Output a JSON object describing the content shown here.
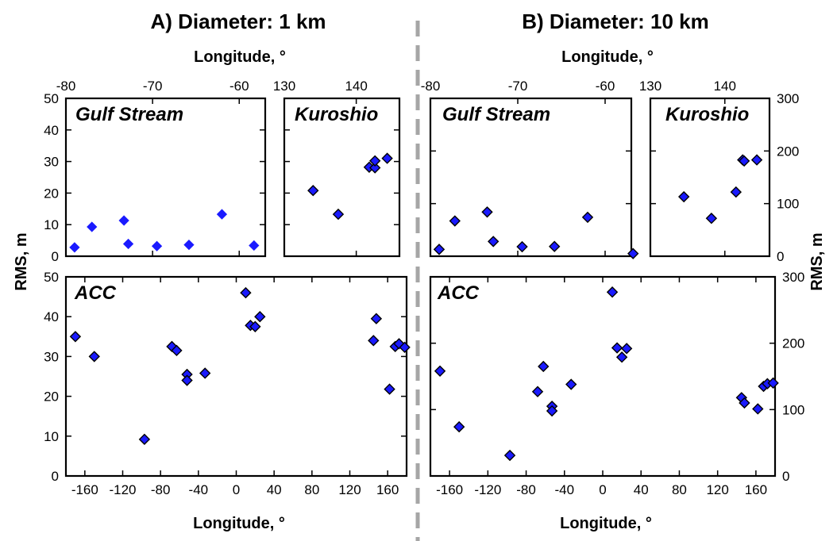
{
  "colors": {
    "marker_fill": "#1a1aff",
    "marker_stroke": "#000000",
    "frame": "#000000",
    "divider": "#a6a6a6"
  },
  "chart_data": [
    {
      "type": "scatter",
      "id": "A-gulf",
      "panel_title": "A) Diameter: 1 km",
      "region": "Gulf Stream",
      "xlabel": "Longitude, °",
      "ylabel": "RMS, m",
      "xlim": [
        -80,
        -57
      ],
      "ylim": [
        0,
        50
      ],
      "xticks": [
        -80,
        -70,
        -60
      ],
      "yticks": [
        0,
        10,
        20,
        30,
        40,
        50
      ],
      "markers_outlined": false,
      "points": [
        [
          -79,
          2.8
        ],
        [
          -77,
          9.3
        ],
        [
          -73.3,
          11.3
        ],
        [
          -72.8,
          3.9
        ],
        [
          -69.5,
          3.2
        ],
        [
          -65.8,
          3.6
        ],
        [
          -62,
          13.3
        ],
        [
          -58.3,
          3.4
        ]
      ]
    },
    {
      "type": "scatter",
      "id": "A-kuro",
      "region": "Kuroshio",
      "xlim": [
        130,
        146
      ],
      "ylim": [
        0,
        50
      ],
      "xticks": [
        130,
        140
      ],
      "markers_outlined": true,
      "points": [
        [
          134,
          20.8
        ],
        [
          137.5,
          13.3
        ],
        [
          141.8,
          28.2
        ],
        [
          142.6,
          28
        ],
        [
          142.6,
          30.2
        ],
        [
          144.3,
          31
        ]
      ]
    },
    {
      "type": "scatter",
      "id": "A-acc",
      "region": "ACC",
      "xlabel": "Longitude, °",
      "ylabel": "RMS, m",
      "xlim": [
        -180,
        180
      ],
      "ylim": [
        0,
        50
      ],
      "xticks": [
        -160,
        -120,
        -80,
        -40,
        0,
        40,
        80,
        120,
        160
      ],
      "yticks": [
        0,
        10,
        20,
        30,
        40,
        50
      ],
      "markers_outlined": true,
      "points": [
        [
          -170,
          35
        ],
        [
          -150,
          30
        ],
        [
          -97,
          9.2
        ],
        [
          -68,
          32.5
        ],
        [
          -63,
          31.5
        ],
        [
          -52,
          25.5
        ],
        [
          -52,
          24
        ],
        [
          -33,
          25.8
        ],
        [
          10,
          46
        ],
        [
          15,
          37.8
        ],
        [
          20,
          37.5
        ],
        [
          25,
          40
        ],
        [
          145,
          34
        ],
        [
          148,
          39.5
        ],
        [
          162,
          21.8
        ],
        [
          168,
          32.5
        ],
        [
          172,
          33.2
        ],
        [
          178,
          32.3
        ]
      ]
    },
    {
      "type": "scatter",
      "id": "B-gulf",
      "panel_title": "B) Diameter: 10 km",
      "region": "Gulf Stream",
      "xlabel": "Longitude, °",
      "xlim": [
        -80,
        -57
      ],
      "ylim": [
        0,
        300
      ],
      "xticks": [
        -80,
        -70,
        -60
      ],
      "yticks": [
        0,
        100,
        200,
        300
      ],
      "markers_outlined": true,
      "points": [
        [
          -79,
          13
        ],
        [
          -77.2,
          67
        ],
        [
          -73.5,
          84
        ],
        [
          -72.8,
          28
        ],
        [
          -69.5,
          18
        ],
        [
          -65.8,
          18.5
        ],
        [
          -62,
          74
        ],
        [
          -56.8,
          5
        ]
      ]
    },
    {
      "type": "scatter",
      "id": "B-kuro",
      "region": "Kuroshio",
      "xlabel": "Longitude, °",
      "ylabel": "RMS, m",
      "xlim": [
        130,
        146
      ],
      "ylim": [
        0,
        300
      ],
      "xticks": [
        130,
        140
      ],
      "yticks": [
        0,
        100,
        200,
        300
      ],
      "markers_outlined": true,
      "points": [
        [
          134.5,
          113
        ],
        [
          138.2,
          72
        ],
        [
          141.5,
          122
        ],
        [
          142.4,
          183
        ],
        [
          142.6,
          181
        ],
        [
          144.3,
          183
        ]
      ]
    },
    {
      "type": "scatter",
      "id": "B-acc",
      "region": "ACC",
      "xlabel": "Longitude, °",
      "ylabel": "RMS, m",
      "xlim": [
        -180,
        180
      ],
      "ylim": [
        0,
        300
      ],
      "xticks": [
        -160,
        -120,
        -80,
        -40,
        0,
        40,
        80,
        120,
        160
      ],
      "yticks": [
        0,
        100,
        200,
        300
      ],
      "markers_outlined": true,
      "points": [
        [
          -170,
          158
        ],
        [
          -150,
          74
        ],
        [
          -97,
          31
        ],
        [
          -68,
          127
        ],
        [
          -62,
          165
        ],
        [
          -53,
          105
        ],
        [
          -53,
          98
        ],
        [
          -33,
          138
        ],
        [
          10,
          277
        ],
        [
          15,
          193
        ],
        [
          20,
          179
        ],
        [
          25,
          192
        ],
        [
          145,
          118
        ],
        [
          148,
          110
        ],
        [
          162,
          101
        ],
        [
          168,
          135
        ],
        [
          172,
          139
        ],
        [
          178,
          140
        ]
      ]
    }
  ]
}
